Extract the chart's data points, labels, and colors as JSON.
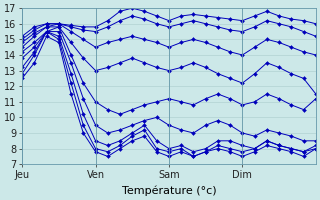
{
  "title": "",
  "xlabel": "Température (°c)",
  "ylabel": "",
  "xlim": [
    0,
    96
  ],
  "ylim": [
    7,
    17
  ],
  "yticks": [
    7,
    8,
    9,
    10,
    11,
    12,
    13,
    14,
    15,
    16,
    17
  ],
  "xtick_positions": [
    0,
    24,
    48,
    72
  ],
  "xtick_labels": [
    "Jeu",
    "Ven",
    "Sam",
    "Dim"
  ],
  "background_color": "#cce8e8",
  "grid_color": "#aacccc",
  "line_color": "#0000bb",
  "series": [
    {
      "x": [
        0,
        4,
        8,
        12,
        16,
        20,
        24,
        28,
        32,
        36,
        40,
        44,
        48,
        52,
        56,
        60,
        64,
        68,
        72,
        76,
        80,
        84,
        88,
        92,
        96
      ],
      "y": [
        15.2,
        15.8,
        16.0,
        16.0,
        15.9,
        15.8,
        15.8,
        16.2,
        16.8,
        17.0,
        16.8,
        16.5,
        16.2,
        16.5,
        16.6,
        16.5,
        16.4,
        16.3,
        16.2,
        16.5,
        16.8,
        16.5,
        16.3,
        16.2,
        16.0
      ]
    },
    {
      "x": [
        0,
        4,
        8,
        12,
        16,
        20,
        24,
        28,
        32,
        36,
        40,
        44,
        48,
        52,
        56,
        60,
        64,
        68,
        72,
        76,
        80,
        84,
        88,
        92,
        96
      ],
      "y": [
        15.0,
        15.6,
        16.0,
        16.0,
        15.8,
        15.6,
        15.5,
        15.8,
        16.2,
        16.5,
        16.3,
        16.0,
        15.8,
        16.0,
        16.2,
        16.0,
        15.8,
        15.6,
        15.5,
        15.8,
        16.2,
        16.0,
        15.8,
        15.5,
        15.2
      ]
    },
    {
      "x": [
        0,
        4,
        8,
        12,
        16,
        20,
        24,
        28,
        32,
        36,
        40,
        44,
        48,
        52,
        56,
        60,
        64,
        68,
        72,
        76,
        80,
        84,
        88,
        92,
        96
      ],
      "y": [
        14.8,
        15.4,
        15.8,
        16.0,
        15.5,
        15.0,
        14.5,
        14.8,
        15.0,
        15.2,
        15.0,
        14.8,
        14.5,
        14.8,
        15.0,
        14.8,
        14.5,
        14.2,
        14.0,
        14.5,
        15.0,
        14.8,
        14.5,
        14.2,
        14.0
      ]
    },
    {
      "x": [
        0,
        4,
        8,
        12,
        16,
        20,
        24,
        28,
        32,
        36,
        40,
        44,
        48,
        52,
        56,
        60,
        64,
        68,
        72,
        76,
        80,
        84,
        88,
        92,
        96
      ],
      "y": [
        14.5,
        15.2,
        15.8,
        15.8,
        14.8,
        13.8,
        13.0,
        13.2,
        13.5,
        13.8,
        13.5,
        13.2,
        13.0,
        13.2,
        13.5,
        13.2,
        12.8,
        12.5,
        12.2,
        12.8,
        13.5,
        13.2,
        12.8,
        12.5,
        11.5
      ]
    },
    {
      "x": [
        0,
        4,
        8,
        12,
        16,
        20,
        24,
        28,
        32,
        36,
        40,
        44,
        48,
        52,
        56,
        60,
        64,
        68,
        72,
        76,
        80,
        84,
        88,
        92,
        96
      ],
      "y": [
        14.2,
        14.8,
        15.5,
        15.8,
        14.0,
        12.2,
        11.0,
        10.5,
        10.2,
        10.5,
        10.8,
        11.0,
        11.2,
        11.0,
        10.8,
        11.2,
        11.5,
        11.2,
        10.8,
        11.0,
        11.5,
        11.2,
        10.8,
        10.5,
        11.2
      ]
    },
    {
      "x": [
        0,
        4,
        8,
        12,
        16,
        20,
        24,
        28,
        32,
        36,
        40,
        44,
        48,
        52,
        56,
        60,
        64,
        68,
        72,
        76,
        80,
        84,
        88,
        92,
        96
      ],
      "y": [
        13.8,
        14.5,
        15.5,
        15.5,
        13.5,
        11.2,
        9.5,
        9.0,
        9.2,
        9.5,
        9.8,
        10.0,
        9.5,
        9.2,
        9.0,
        9.5,
        9.8,
        9.5,
        9.0,
        8.8,
        9.2,
        9.0,
        8.8,
        8.5,
        8.5
      ]
    },
    {
      "x": [
        0,
        4,
        8,
        12,
        16,
        20,
        24,
        28,
        32,
        36,
        40,
        44,
        48,
        52,
        56,
        60,
        64,
        68,
        72,
        76,
        80,
        84,
        88,
        92,
        96
      ],
      "y": [
        13.2,
        14.2,
        15.5,
        15.2,
        12.8,
        10.2,
        8.5,
        8.2,
        8.5,
        9.0,
        9.5,
        8.5,
        8.0,
        8.2,
        7.8,
        8.0,
        8.5,
        8.5,
        8.2,
        8.0,
        8.5,
        8.2,
        8.0,
        7.8,
        8.2
      ]
    },
    {
      "x": [
        0,
        4,
        8,
        12,
        16,
        20,
        24,
        28,
        32,
        36,
        40,
        44,
        48,
        52,
        56,
        60,
        64,
        68,
        72,
        76,
        80,
        84,
        88,
        92,
        96
      ],
      "y": [
        12.8,
        14.0,
        15.5,
        15.0,
        12.2,
        9.5,
        8.0,
        7.8,
        8.2,
        8.8,
        9.2,
        8.0,
        7.8,
        8.0,
        7.5,
        7.8,
        8.2,
        8.0,
        7.8,
        8.0,
        8.5,
        8.2,
        8.0,
        7.8,
        8.0
      ]
    },
    {
      "x": [
        0,
        4,
        8,
        12,
        16,
        20,
        24,
        28,
        32,
        36,
        40,
        44,
        48,
        52,
        56,
        60,
        64,
        68,
        72,
        76,
        80,
        84,
        88,
        92,
        96
      ],
      "y": [
        12.5,
        13.5,
        15.2,
        14.8,
        11.5,
        9.0,
        7.8,
        7.5,
        8.0,
        8.5,
        8.8,
        7.8,
        7.5,
        7.8,
        7.5,
        7.8,
        8.0,
        7.8,
        7.5,
        7.8,
        8.2,
        8.0,
        7.8,
        7.5,
        8.0
      ]
    }
  ]
}
